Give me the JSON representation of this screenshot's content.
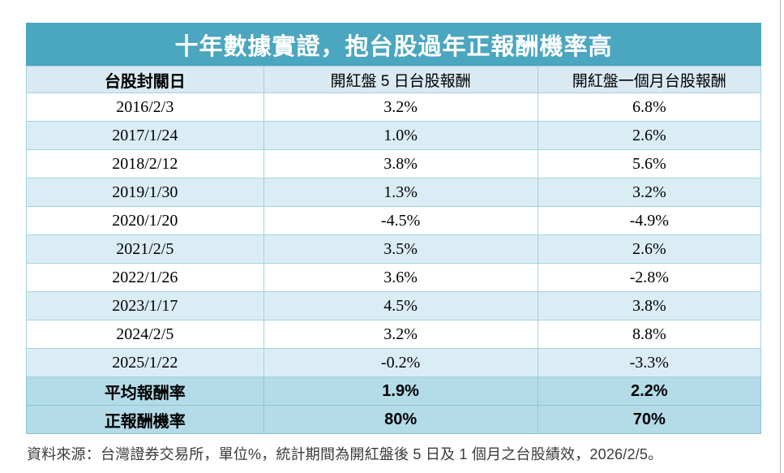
{
  "title": "十年數據實證，抱台股過年正報酬機率高",
  "table": {
    "columns": [
      "台股封關日",
      "開紅盤 5 日台股報酬",
      "開紅盤一個月台股報酬"
    ],
    "rows": [
      [
        "2016/2/3",
        "3.2%",
        "6.8%"
      ],
      [
        "2017/1/24",
        "1.0%",
        "2.6%"
      ],
      [
        "2018/2/12",
        "3.8%",
        "5.6%"
      ],
      [
        "2019/1/30",
        "1.3%",
        "3.2%"
      ],
      [
        "2020/1/20",
        "-4.5%",
        "-4.9%"
      ],
      [
        "2021/2/5",
        "3.5%",
        "2.6%"
      ],
      [
        "2022/1/26",
        "3.6%",
        "-2.8%"
      ],
      [
        "2023/1/17",
        "4.5%",
        "3.8%"
      ],
      [
        "2024/2/5",
        "3.2%",
        "8.8%"
      ],
      [
        "2025/1/22",
        "-0.2%",
        "-3.3%"
      ]
    ],
    "summary_rows": [
      [
        "平均報酬率",
        "1.9%",
        "2.2%"
      ],
      [
        "正報酬機率",
        "80%",
        "70%"
      ]
    ]
  },
  "footer": "資料來源：台灣證券交易所，單位%，統計期間為開紅盤後 5 日及 1 個月之台股績效，2026/2/5。",
  "colors": {
    "title_bg": "#4BA6BF",
    "header_bg": "#D9EAF2",
    "alt_row_bg": "#DBEDF4",
    "summary_bg": "#B3DBE8",
    "grid_line": "#A3D2DF",
    "footer_text": "#3B3B3B"
  },
  "chart_data": {
    "type": "table",
    "title": "十年數據實證，抱台股過年正報酬機率高",
    "categories": [
      "2016/2/3",
      "2017/1/24",
      "2018/2/12",
      "2019/1/30",
      "2020/1/20",
      "2021/2/5",
      "2022/1/26",
      "2023/1/17",
      "2024/2/5",
      "2025/1/22"
    ],
    "series": [
      {
        "name": "開紅盤 5 日台股報酬",
        "values": [
          3.2,
          1.0,
          3.8,
          1.3,
          -4.5,
          3.5,
          3.6,
          4.5,
          3.2,
          -0.2
        ],
        "average": 1.9,
        "positive_return_probability": 80
      },
      {
        "name": "開紅盤一個月台股報酬",
        "values": [
          6.8,
          2.6,
          5.6,
          3.2,
          -4.9,
          2.6,
          -2.8,
          3.8,
          8.8,
          -3.3
        ],
        "average": 2.2,
        "positive_return_probability": 70
      }
    ],
    "unit": "%",
    "source_note": "資料來源：台灣證券交易所，單位%，統計期間為開紅盤後 5 日及 1 個月之台股績效，2026/2/5。"
  }
}
